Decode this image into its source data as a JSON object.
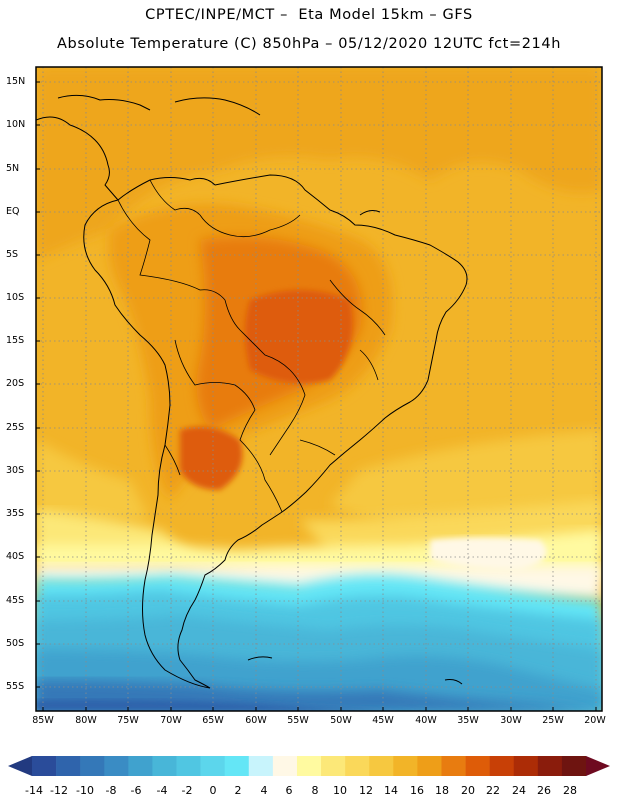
{
  "header": {
    "line1": "CPTEC/INPE/MCT –  Eta Model 15km – GFS",
    "line2": "Absolute Temperature (C) 850hPa – 05/12/2020 12UTC fct=214h"
  },
  "axes": {
    "lat_labels": [
      "15N",
      "10N",
      "5N",
      "EQ",
      "5S",
      "10S",
      "15S",
      "20S",
      "25S",
      "30S",
      "35S",
      "40S",
      "45S",
      "50S",
      "55S"
    ],
    "lon_labels": [
      "85W",
      "80W",
      "75W",
      "70W",
      "65W",
      "60W",
      "55W",
      "50W",
      "45W",
      "40W",
      "35W",
      "30W",
      "25W",
      "20W"
    ]
  },
  "colorbar": {
    "labels": [
      "-14",
      "-12",
      "-10",
      "-8",
      "-6",
      "-4",
      "-2",
      "0",
      "2",
      "4",
      "6",
      "8",
      "10",
      "12",
      "14",
      "16",
      "18",
      "20",
      "22",
      "24",
      "26",
      "28"
    ],
    "colors": [
      "#2a4c9a",
      "#2f64ac",
      "#3478b8",
      "#3a8cc4",
      "#40a2ce",
      "#48b6d8",
      "#50c6e2",
      "#5cd6ec",
      "#64e6f6",
      "#c8f4fc",
      "#fff8e6",
      "#fffaa0",
      "#fce878",
      "#fad85a",
      "#f6c840",
      "#f2b428",
      "#ee9e18",
      "#e87c10",
      "#de5c08",
      "#c84006",
      "#ac2c06",
      "#8a1c0c",
      "#6e1410"
    ],
    "under_color": "#223a80",
    "over_color": "#6e0a20"
  }
}
